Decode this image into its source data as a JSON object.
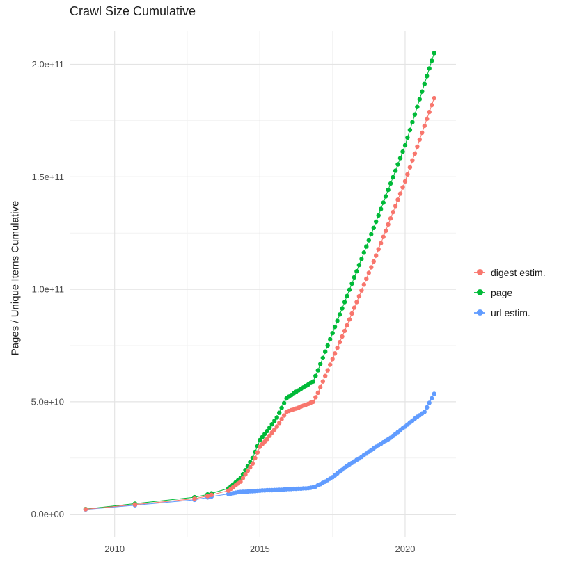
{
  "colors": {
    "digest": "#F8766D",
    "page": "#00BA38",
    "url": "#619CFF",
    "grid_major": "#E4E4E4",
    "grid_minor": "#F2F2F2",
    "axis_text": "#4D4D4D",
    "title_text": "#1B1B1B",
    "panel_bg": "#FFFFFF"
  },
  "chart_data": {
    "type": "scatter",
    "title": "Crawl Size Cumulative",
    "xlabel": "",
    "ylabel": "Pages / Unique Items Cumulative",
    "y_value_unit": "items, values stored in billions (1e9)",
    "xlim": [
      2008.45,
      2021.75
    ],
    "ylim_billions": [
      -10,
      215
    ],
    "grid": true,
    "legend_position": "right",
    "x_ticks": [
      {
        "v": 2010,
        "label": "2010"
      },
      {
        "v": 2015,
        "label": "2015"
      },
      {
        "v": 2020,
        "label": "2020"
      }
    ],
    "x_minor": [
      2012.5,
      2017.5
    ],
    "y_ticks": [
      {
        "v": 0,
        "label": "0.0e+00"
      },
      {
        "v": 50,
        "label": "5.0e+10"
      },
      {
        "v": 100,
        "label": "1.0e+11"
      },
      {
        "v": 150,
        "label": "1.5e+11"
      },
      {
        "v": 200,
        "label": "2.0e+11"
      }
    ],
    "y_minor": [
      25,
      75,
      125,
      175
    ],
    "x": [
      2009.0,
      2010.7,
      2012.75,
      2013.2,
      2013.333,
      2013.917,
      2014.0,
      2014.083,
      2014.167,
      2014.25,
      2014.333,
      2014.417,
      2014.5,
      2014.583,
      2014.667,
      2014.75,
      2014.833,
      2014.917,
      2015.0,
      2015.083,
      2015.167,
      2015.25,
      2015.333,
      2015.417,
      2015.5,
      2015.583,
      2015.667,
      2015.75,
      2015.833,
      2015.917,
      2016.0,
      2016.083,
      2016.167,
      2016.25,
      2016.333,
      2016.417,
      2016.5,
      2016.583,
      2016.667,
      2016.75,
      2016.833,
      2016.917,
      2017.0,
      2017.083,
      2017.167,
      2017.25,
      2017.333,
      2017.417,
      2017.5,
      2017.583,
      2017.667,
      2017.75,
      2017.833,
      2017.917,
      2018.0,
      2018.083,
      2018.167,
      2018.25,
      2018.333,
      2018.417,
      2018.5,
      2018.583,
      2018.667,
      2018.75,
      2018.833,
      2018.917,
      2019.0,
      2019.083,
      2019.167,
      2019.25,
      2019.333,
      2019.417,
      2019.5,
      2019.583,
      2019.667,
      2019.75,
      2019.833,
      2019.917,
      2020.0,
      2020.083,
      2020.167,
      2020.25,
      2020.333,
      2020.417,
      2020.5,
      2020.583,
      2020.667,
      2020.75,
      2020.833,
      2020.917,
      2021.0
    ],
    "series": [
      {
        "id": "digest-estim",
        "name": "digest estim.",
        "color": "#F8766D",
        "values": [
          2.2,
          4.3,
          6.9,
          8.1,
          8.6,
          10.5,
          11.3,
          12.1,
          12.9,
          13.7,
          14.5,
          16.1,
          17.7,
          19.3,
          20.9,
          22.5,
          25.0,
          27.5,
          30.0,
          31.2,
          32.3,
          33.5,
          34.9,
          36.3,
          37.6,
          39.0,
          40.6,
          42.3,
          43.9,
          45.5,
          45.9,
          46.3,
          46.6,
          47.0,
          47.4,
          47.9,
          48.3,
          48.7,
          49.1,
          49.6,
          50.0,
          52.0,
          54.0,
          56.5,
          59.0,
          61.5,
          64.0,
          66.5,
          69.0,
          71.5,
          74.0,
          76.5,
          79.0,
          81.5,
          84.0,
          86.6,
          89.2,
          91.8,
          94.3,
          96.9,
          99.5,
          102.1,
          104.7,
          107.3,
          109.8,
          112.4,
          115.0,
          117.8,
          120.5,
          123.3,
          126.0,
          128.8,
          131.5,
          134.3,
          137.0,
          139.8,
          142.5,
          145.3,
          148.0,
          151.1,
          154.2,
          157.3,
          160.3,
          163.4,
          166.5,
          169.6,
          172.7,
          175.8,
          178.8,
          181.9,
          185.0
        ]
      },
      {
        "id": "page",
        "name": "page",
        "color": "#00BA38",
        "values": [
          2.3,
          4.7,
          7.6,
          8.8,
          9.3,
          11.5,
          12.4,
          13.3,
          14.2,
          15.1,
          16.0,
          17.8,
          19.6,
          21.4,
          23.2,
          25.0,
          27.7,
          30.3,
          33.0,
          34.3,
          35.7,
          37.0,
          38.5,
          40.0,
          41.5,
          43.0,
          45.1,
          47.3,
          49.4,
          51.5,
          52.3,
          53.0,
          53.8,
          54.5,
          55.1,
          55.8,
          56.4,
          57.1,
          57.7,
          58.4,
          59.0,
          61.5,
          64.0,
          66.8,
          69.5,
          72.3,
          75.0,
          77.8,
          80.5,
          83.3,
          86.0,
          88.8,
          91.5,
          94.3,
          97.0,
          99.8,
          102.5,
          105.3,
          108.0,
          110.8,
          113.5,
          116.3,
          119.0,
          121.8,
          124.5,
          127.3,
          130.0,
          132.8,
          135.7,
          138.5,
          141.3,
          144.2,
          147.0,
          149.8,
          152.7,
          155.5,
          158.3,
          161.2,
          164.0,
          167.4,
          170.8,
          174.3,
          177.7,
          181.1,
          184.5,
          187.9,
          191.3,
          194.8,
          198.2,
          201.6,
          205.0
        ]
      },
      {
        "id": "url-estim",
        "name": "url estim.",
        "color": "#619CFF",
        "values": [
          2.1,
          4.0,
          6.4,
          7.5,
          7.9,
          9.0,
          9.2,
          9.4,
          9.6,
          9.8,
          9.9,
          10.0,
          10.0,
          10.1,
          10.2,
          10.2,
          10.3,
          10.4,
          10.5,
          10.6,
          10.6,
          10.7,
          10.7,
          10.7,
          10.8,
          10.8,
          10.9,
          10.9,
          11.0,
          11.1,
          11.2,
          11.2,
          11.3,
          11.3,
          11.4,
          11.4,
          11.5,
          11.5,
          11.6,
          11.8,
          12.0,
          12.3,
          12.9,
          13.4,
          14.0,
          14.5,
          15.2,
          15.8,
          16.5,
          17.3,
          18.2,
          19.0,
          19.8,
          20.7,
          21.5,
          22.2,
          22.8,
          23.5,
          24.2,
          24.8,
          25.5,
          26.3,
          27.0,
          27.8,
          28.5,
          29.3,
          30.0,
          30.7,
          31.3,
          32.0,
          32.7,
          33.3,
          34.0,
          34.8,
          35.7,
          36.5,
          37.3,
          38.2,
          39.0,
          39.9,
          40.8,
          41.6,
          42.5,
          43.3,
          44.0,
          44.8,
          45.5,
          47.5,
          49.5,
          51.5,
          53.5
        ]
      }
    ],
    "draw_order": [
      "page",
      "url estim.",
      "digest estim."
    ]
  }
}
